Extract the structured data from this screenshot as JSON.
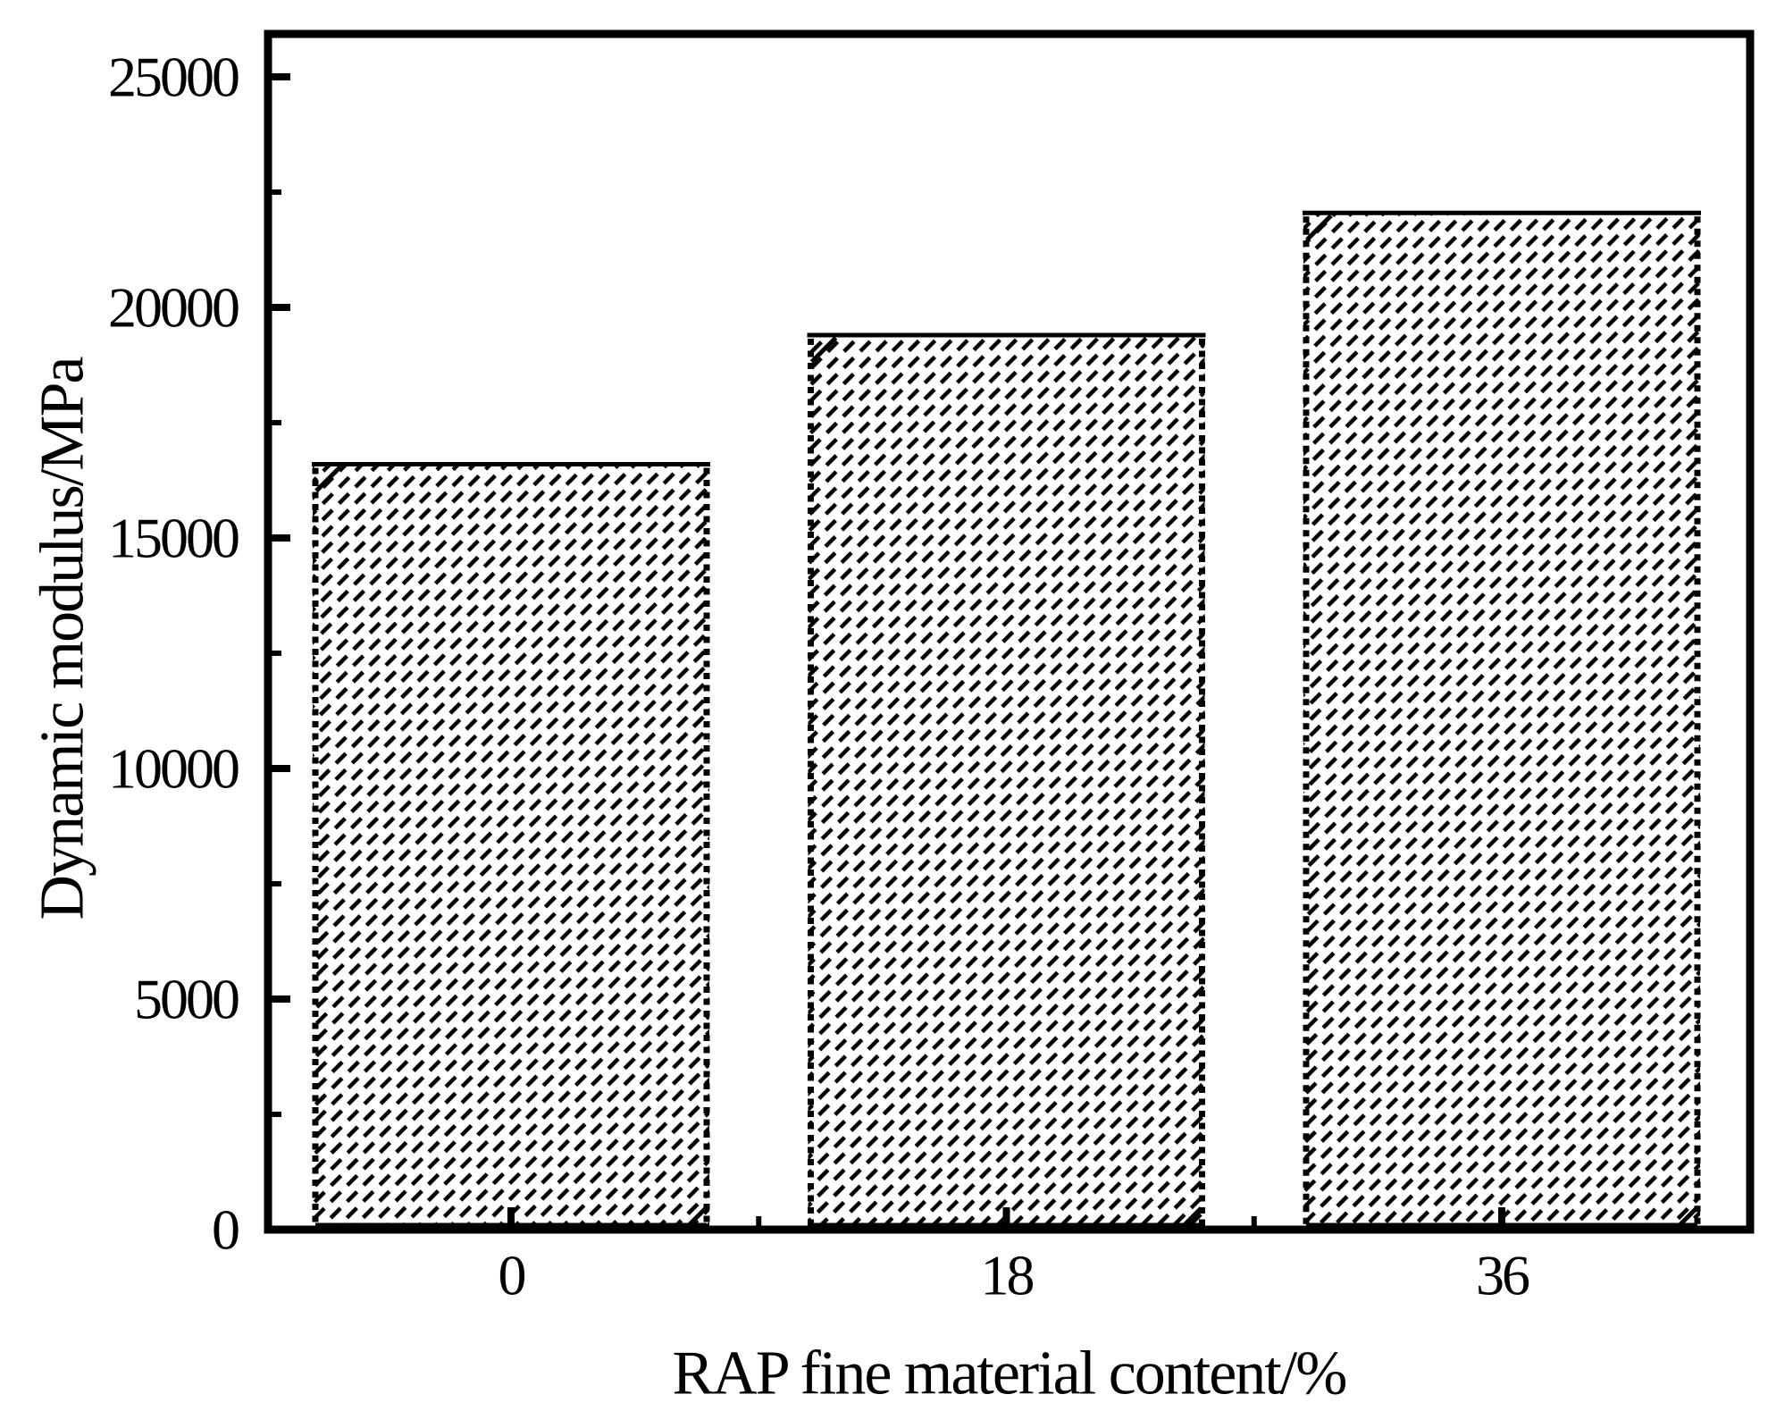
{
  "figure": {
    "background": "#ffffff",
    "ink": "#000000",
    "description": "Bar chart of dynamic modulus versus RAP fine material content"
  },
  "chart_data": {
    "type": "bar",
    "title": "",
    "xlabel": "RAP fine material content/%",
    "ylabel": "Dynamic modulus/MPa",
    "categories": [
      "0",
      "18",
      "36"
    ],
    "values": [
      16600,
      19400,
      22050
    ],
    "ylim": [
      0,
      25900
    ],
    "yticks": [
      0,
      5000,
      10000,
      15000,
      20000,
      25000
    ],
    "ytick_labels": [
      "0",
      "5000",
      "10000",
      "15000",
      "20000",
      "25000"
    ],
    "minor_ytick_step": 2500,
    "minor_xticks_between_categories": true,
    "grid": false,
    "legend": null,
    "bar_style": {
      "fill_color": "#ffffff",
      "hatch": "diagonal-dashed",
      "hatch_color": "#000000",
      "side_edges": "dotted",
      "top_edge": "solid",
      "edge_color": "#000000"
    }
  }
}
